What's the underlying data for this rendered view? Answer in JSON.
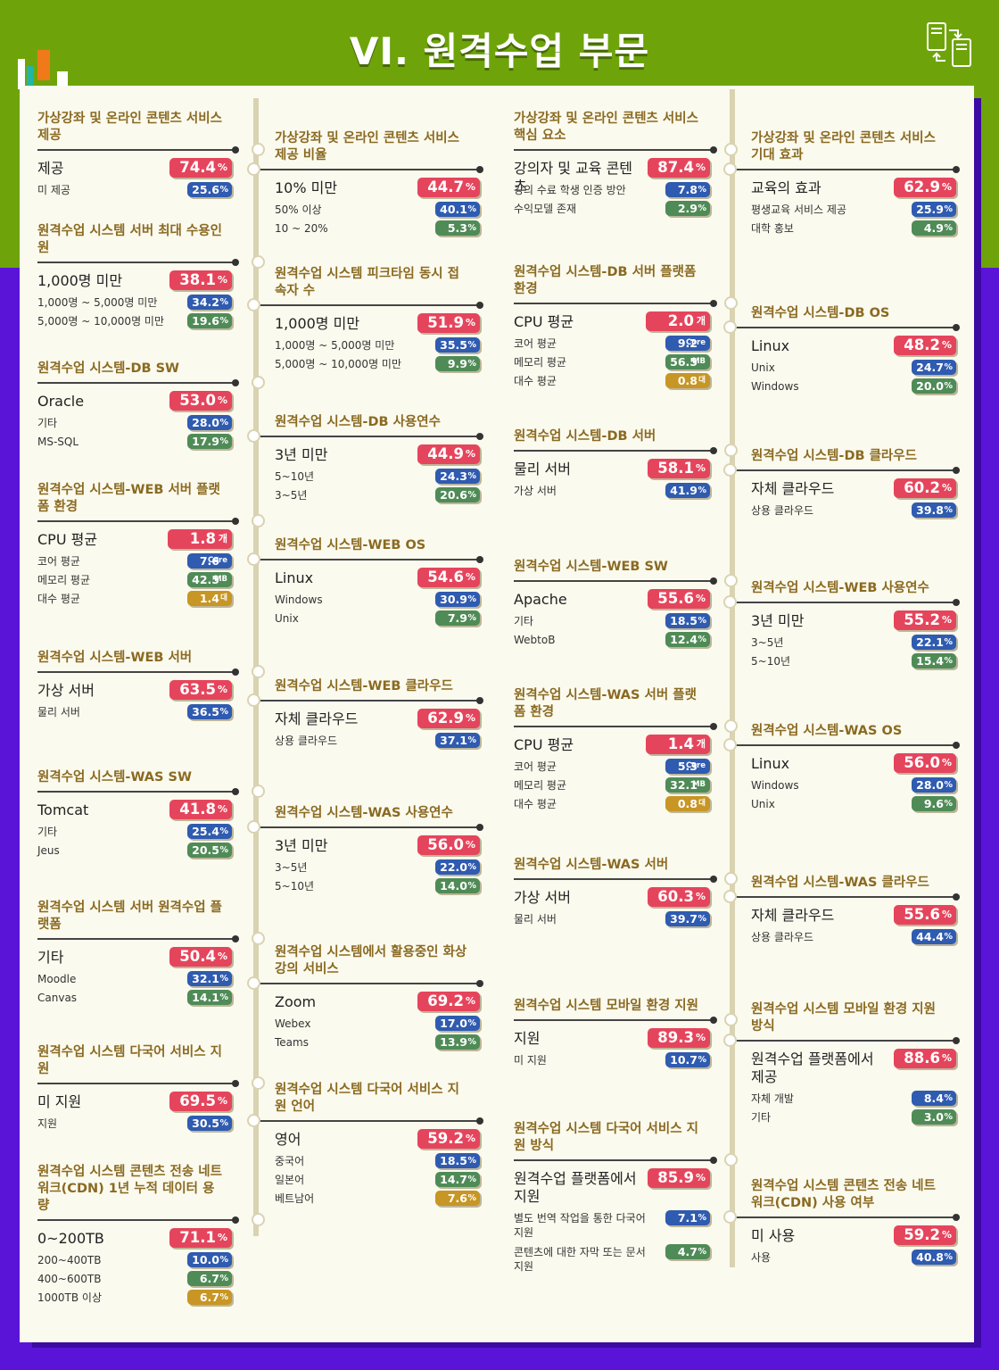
{
  "title": "VI. 원격수업 부문",
  "colors": {
    "green": "#6ea40a",
    "purple": "#5a14d8",
    "red": "#e5455c",
    "blue": "#2f5bb0",
    "teal": "#4f8b57",
    "gold": "#c79624",
    "header": "#8a6a22"
  },
  "cards": [
    {
      "title": "가상강좌 및 온라인 콘텐츠 서비스 제공",
      "rows": [
        {
          "label": "제공",
          "value": "74.4",
          "unit": "%",
          "color": "red"
        },
        {
          "label": "미 제공",
          "value": "25.6",
          "unit": "%",
          "color": "blue"
        }
      ]
    },
    {
      "title": "원격수업 시스템 서버 최대 수용인원",
      "rows": [
        {
          "label": "1,000명 미만",
          "value": "38.1",
          "unit": "%",
          "color": "red"
        },
        {
          "label": "1,000명 ~ 5,000명 미만",
          "value": "34.2",
          "unit": "%",
          "color": "blue"
        },
        {
          "label": "5,000명 ~ 10,000명 미만",
          "value": "19.6",
          "unit": "%",
          "color": "green"
        }
      ]
    },
    {
      "title": "원격수업 시스템-DB SW",
      "rows": [
        {
          "label": "Oracle",
          "value": "53.0",
          "unit": "%",
          "color": "red"
        },
        {
          "label": "기타",
          "value": "28.0",
          "unit": "%",
          "color": "blue"
        },
        {
          "label": "MS-SQL",
          "value": "17.9",
          "unit": "%",
          "color": "green"
        }
      ]
    },
    {
      "title": "원격수업 시스템-WEB 서버 플랫폼 환경",
      "rows": [
        {
          "label": "CPU 평균",
          "value": "1.8",
          "unit": "개",
          "color": "red"
        },
        {
          "label": "코어 평균",
          "value": "7.6",
          "unit": "Core",
          "color": "blue"
        },
        {
          "label": "메모리 평균",
          "value": "42.5",
          "unit": "MB",
          "color": "green"
        },
        {
          "label": "대수 평균",
          "value": "1.4",
          "unit": "대",
          "color": "gold"
        }
      ]
    },
    {
      "title": "원격수업 시스템-WEB 서버",
      "rows": [
        {
          "label": "가상 서버",
          "value": "63.5",
          "unit": "%",
          "color": "red"
        },
        {
          "label": "물리 서버",
          "value": "36.5",
          "unit": "%",
          "color": "blue"
        }
      ]
    },
    {
      "title": "원격수업 시스템-WAS SW",
      "rows": [
        {
          "label": "Tomcat",
          "value": "41.8",
          "unit": "%",
          "color": "red"
        },
        {
          "label": "기타",
          "value": "25.4",
          "unit": "%",
          "color": "blue"
        },
        {
          "label": "Jeus",
          "value": "20.5",
          "unit": "%",
          "color": "green"
        }
      ]
    },
    {
      "title": "원격수업 시스템 서버 원격수업 플랫폼",
      "rows": [
        {
          "label": "기타",
          "value": "50.4",
          "unit": "%",
          "color": "red"
        },
        {
          "label": "Moodle",
          "value": "32.1",
          "unit": "%",
          "color": "blue"
        },
        {
          "label": "Canvas",
          "value": "14.1",
          "unit": "%",
          "color": "green"
        }
      ]
    },
    {
      "title": "원격수업 시스템 다국어 서비스 지원",
      "rows": [
        {
          "label": "미 지원",
          "value": "69.5",
          "unit": "%",
          "color": "red"
        },
        {
          "label": "지원",
          "value": "30.5",
          "unit": "%",
          "color": "blue"
        }
      ]
    },
    {
      "title": "원격수업 시스템 콘텐츠 전송 네트워크(CDN) 1년 누적 데이터 용량",
      "rows": [
        {
          "label": "0~200TB",
          "value": "71.1",
          "unit": "%",
          "color": "red"
        },
        {
          "label": "200~400TB",
          "value": "10.0",
          "unit": "%",
          "color": "blue"
        },
        {
          "label": "400~600TB",
          "value": "6.7",
          "unit": "%",
          "color": "green"
        },
        {
          "label": "1000TB 이상",
          "value": "6.7",
          "unit": "%",
          "color": "gold"
        }
      ]
    },
    {
      "title": "가상강좌 및 온라인 콘텐츠 서비스 제공 비율",
      "rows": [
        {
          "label": "10% 미만",
          "value": "44.7",
          "unit": "%",
          "color": "red"
        },
        {
          "label": "50% 이상",
          "value": "40.1",
          "unit": "%",
          "color": "blue"
        },
        {
          "label": "10 ~ 20%",
          "value": "5.3",
          "unit": "%",
          "color": "green"
        }
      ]
    },
    {
      "title": "원격수업 시스템 피크타임 동시 접속자 수",
      "rows": [
        {
          "label": "1,000명 미만",
          "value": "51.9",
          "unit": "%",
          "color": "red"
        },
        {
          "label": "1,000명 ~ 5,000명 미만",
          "value": "35.5",
          "unit": "%",
          "color": "blue"
        },
        {
          "label": "5,000명 ~ 10,000명 미만",
          "value": "9.9",
          "unit": "%",
          "color": "green"
        }
      ]
    },
    {
      "title": "원격수업 시스템-DB 사용연수",
      "rows": [
        {
          "label": "3년 미만",
          "value": "44.9",
          "unit": "%",
          "color": "red"
        },
        {
          "label": "5~10년",
          "value": "24.3",
          "unit": "%",
          "color": "blue"
        },
        {
          "label": "3~5년",
          "value": "20.6",
          "unit": "%",
          "color": "green"
        }
      ]
    },
    {
      "title": "원격수업 시스템-WEB OS",
      "rows": [
        {
          "label": "Linux",
          "value": "54.6",
          "unit": "%",
          "color": "red"
        },
        {
          "label": "Windows",
          "value": "30.9",
          "unit": "%",
          "color": "blue"
        },
        {
          "label": "Unix",
          "value": "7.9",
          "unit": "%",
          "color": "green"
        }
      ]
    },
    {
      "title": "원격수업 시스템-WEB 클라우드",
      "rows": [
        {
          "label": "자체 클라우드",
          "value": "62.9",
          "unit": "%",
          "color": "red"
        },
        {
          "label": "상용 클라우드",
          "value": "37.1",
          "unit": "%",
          "color": "blue"
        }
      ]
    },
    {
      "title": "원격수업 시스템-WAS 사용연수",
      "rows": [
        {
          "label": "3년 미만",
          "value": "56.0",
          "unit": "%",
          "color": "red"
        },
        {
          "label": "3~5년",
          "value": "22.0",
          "unit": "%",
          "color": "blue"
        },
        {
          "label": "5~10년",
          "value": "14.0",
          "unit": "%",
          "color": "green"
        }
      ]
    },
    {
      "title": "원격수업 시스템에서 활용중인 화상강의 서비스",
      "rows": [
        {
          "label": "Zoom",
          "value": "69.2",
          "unit": "%",
          "color": "red"
        },
        {
          "label": "Webex",
          "value": "17.0",
          "unit": "%",
          "color": "blue"
        },
        {
          "label": "Teams",
          "value": "13.9",
          "unit": "%",
          "color": "green"
        }
      ]
    },
    {
      "title": "원격수업 시스템 다국어 서비스 지원 언어",
      "rows": [
        {
          "label": "영어",
          "value": "59.2",
          "unit": "%",
          "color": "red"
        },
        {
          "label": "중국어",
          "value": "18.5",
          "unit": "%",
          "color": "blue"
        },
        {
          "label": "일본어",
          "value": "14.7",
          "unit": "%",
          "color": "green"
        },
        {
          "label": "베트남어",
          "value": "7.6",
          "unit": "%",
          "color": "gold"
        }
      ]
    },
    {
      "title": "가상강좌 및 온라인 콘텐츠 서비스 핵심 요소",
      "rows": [
        {
          "label": "강의자 및 교육 콘텐츠",
          "value": "87.4",
          "unit": "%",
          "color": "red"
        },
        {
          "label": "강의 수료 학생 인증 방안",
          "value": "7.8",
          "unit": "%",
          "color": "blue"
        },
        {
          "label": "수익모델 존재",
          "value": "2.9",
          "unit": "%",
          "color": "green"
        }
      ]
    },
    {
      "title": "원격수업 시스템-DB 서버 플랫폼 환경",
      "rows": [
        {
          "label": "CPU 평균",
          "value": "2.0",
          "unit": "개",
          "color": "red"
        },
        {
          "label": "코어 평균",
          "value": "9.2",
          "unit": "Core",
          "color": "blue"
        },
        {
          "label": "메모리 평균",
          "value": "56.5",
          "unit": "MB",
          "color": "green"
        },
        {
          "label": "대수 평균",
          "value": "0.8",
          "unit": "대",
          "color": "gold"
        }
      ]
    },
    {
      "title": "원격수업 시스템-DB 서버",
      "rows": [
        {
          "label": "물리 서버",
          "value": "58.1",
          "unit": "%",
          "color": "red"
        },
        {
          "label": "가상 서버",
          "value": "41.9",
          "unit": "%",
          "color": "blue"
        }
      ]
    },
    {
      "title": "원격수업 시스템-WEB SW",
      "rows": [
        {
          "label": "Apache",
          "value": "55.6",
          "unit": "%",
          "color": "red"
        },
        {
          "label": "기타",
          "value": "18.5",
          "unit": "%",
          "color": "blue"
        },
        {
          "label": "WebtoB",
          "value": "12.4",
          "unit": "%",
          "color": "green"
        }
      ]
    },
    {
      "title": "원격수업 시스템-WAS 서버 플랫폼 환경",
      "rows": [
        {
          "label": "CPU 평균",
          "value": "1.4",
          "unit": "개",
          "color": "red"
        },
        {
          "label": "코어 평균",
          "value": "5.3",
          "unit": "Core",
          "color": "blue"
        },
        {
          "label": "메모리 평균",
          "value": "32.1",
          "unit": "MB",
          "color": "green"
        },
        {
          "label": "대수 평균",
          "value": "0.8",
          "unit": "대",
          "color": "gold"
        }
      ]
    },
    {
      "title": "원격수업 시스템-WAS 서버",
      "rows": [
        {
          "label": "가상 서버",
          "value": "60.3",
          "unit": "%",
          "color": "red"
        },
        {
          "label": "물리 서버",
          "value": "39.7",
          "unit": "%",
          "color": "blue"
        }
      ]
    },
    {
      "title": "원격수업 시스템 모바일 환경 지원",
      "rows": [
        {
          "label": "지원",
          "value": "89.3",
          "unit": "%",
          "color": "red"
        },
        {
          "label": "미 지원",
          "value": "10.7",
          "unit": "%",
          "color": "blue"
        }
      ]
    },
    {
      "title": "원격수업 시스템 다국어 서비스 지원 방식",
      "rows": [
        {
          "label": "원격수업 플랫폼에서 지원",
          "value": "85.9",
          "unit": "%",
          "color": "red"
        },
        {
          "label": "별도 번역 작업을 통한 다국어 지원",
          "value": "7.1",
          "unit": "%",
          "color": "blue"
        },
        {
          "label": "콘텐츠에 대한 자막 또는 문서 지원",
          "value": "4.7",
          "unit": "%",
          "color": "green"
        }
      ]
    },
    {
      "title": "가상강좌 및 온라인 콘텐츠 서비스 기대 효과",
      "rows": [
        {
          "label": "교육의 효과",
          "value": "62.9",
          "unit": "%",
          "color": "red"
        },
        {
          "label": "평생교육 서비스 제공",
          "value": "25.9",
          "unit": "%",
          "color": "blue"
        },
        {
          "label": "대학 홍보",
          "value": "4.9",
          "unit": "%",
          "color": "green"
        }
      ]
    },
    {
      "title": "원격수업 시스템-DB OS",
      "rows": [
        {
          "label": "Linux",
          "value": "48.2",
          "unit": "%",
          "color": "red"
        },
        {
          "label": "Unix",
          "value": "24.7",
          "unit": "%",
          "color": "blue"
        },
        {
          "label": "Windows",
          "value": "20.0",
          "unit": "%",
          "color": "green"
        }
      ]
    },
    {
      "title": "원격수업 시스템-DB 클라우드",
      "rows": [
        {
          "label": "자체 클라우드",
          "value": "60.2",
          "unit": "%",
          "color": "red"
        },
        {
          "label": "상용 클라우드",
          "value": "39.8",
          "unit": "%",
          "color": "blue"
        }
      ]
    },
    {
      "title": "원격수업 시스템-WEB 사용연수",
      "rows": [
        {
          "label": "3년 미만",
          "value": "55.2",
          "unit": "%",
          "color": "red"
        },
        {
          "label": "3~5년",
          "value": "22.1",
          "unit": "%",
          "color": "blue"
        },
        {
          "label": "5~10년",
          "value": "15.4",
          "unit": "%",
          "color": "green"
        }
      ]
    },
    {
      "title": "원격수업 시스템-WAS OS",
      "rows": [
        {
          "label": "Linux",
          "value": "56.0",
          "unit": "%",
          "color": "red"
        },
        {
          "label": "Windows",
          "value": "28.0",
          "unit": "%",
          "color": "blue"
        },
        {
          "label": "Unix",
          "value": "9.6",
          "unit": "%",
          "color": "green"
        }
      ]
    },
    {
      "title": "원격수업 시스템-WAS 클라우드",
      "rows": [
        {
          "label": "자체 클라우드",
          "value": "55.6",
          "unit": "%",
          "color": "red"
        },
        {
          "label": "상용 클라우드",
          "value": "44.4",
          "unit": "%",
          "color": "blue"
        }
      ]
    },
    {
      "title": "원격수업 시스템 모바일 환경 지원 방식",
      "rows": [
        {
          "label": "원격수업 플랫폼에서 제공",
          "value": "88.6",
          "unit": "%",
          "color": "red"
        },
        {
          "label": "자체 개발",
          "value": "8.4",
          "unit": "%",
          "color": "blue"
        },
        {
          "label": "기타",
          "value": "3.0",
          "unit": "%",
          "color": "green"
        }
      ]
    },
    {
      "title": "원격수업 시스템 콘텐츠 전송 네트워크(CDN) 사용 여부",
      "rows": [
        {
          "label": "미 사용",
          "value": "59.2",
          "unit": "%",
          "color": "red"
        },
        {
          "label": "사용",
          "value": "40.8",
          "unit": "%",
          "color": "blue"
        }
      ]
    }
  ]
}
